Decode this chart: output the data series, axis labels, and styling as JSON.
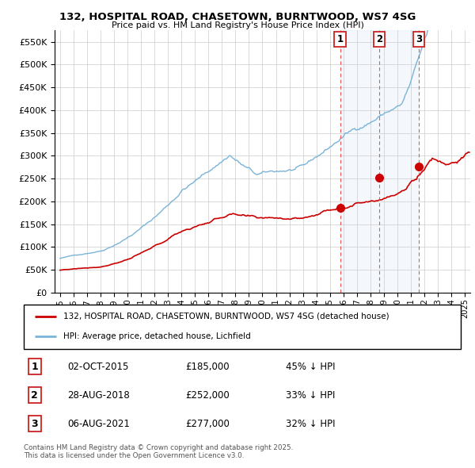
{
  "title_line1": "132, HOSPITAL ROAD, CHASETOWN, BURNTWOOD, WS7 4SG",
  "title_line2": "Price paid vs. HM Land Registry's House Price Index (HPI)",
  "ylim": [
    0,
    575000
  ],
  "yticks": [
    0,
    50000,
    100000,
    150000,
    200000,
    250000,
    300000,
    350000,
    400000,
    450000,
    500000,
    550000
  ],
  "ytick_labels": [
    "£0",
    "£50K",
    "£100K",
    "£150K",
    "£200K",
    "£250K",
    "£300K",
    "£350K",
    "£400K",
    "£450K",
    "£500K",
    "£550K"
  ],
  "xlim_start": 1994.6,
  "xlim_end": 2025.4,
  "xticks": [
    1995,
    1996,
    1997,
    1998,
    1999,
    2000,
    2001,
    2002,
    2003,
    2004,
    2005,
    2006,
    2007,
    2008,
    2009,
    2010,
    2011,
    2012,
    2013,
    2014,
    2015,
    2016,
    2017,
    2018,
    2019,
    2020,
    2021,
    2022,
    2023,
    2024,
    2025
  ],
  "sale_dates_num": [
    2015.75,
    2018.66,
    2021.59
  ],
  "sale_prices": [
    185000,
    252000,
    277000
  ],
  "sale_labels": [
    "1",
    "2",
    "3"
  ],
  "sale_dates_str": [
    "02-OCT-2015",
    "28-AUG-2018",
    "06-AUG-2021"
  ],
  "sale_prices_str": [
    "£185,000",
    "£252,000",
    "£277,000"
  ],
  "sale_below_str": [
    "45% ↓ HPI",
    "33% ↓ HPI",
    "32% ↓ HPI"
  ],
  "hpi_color": "#7ab4d8",
  "hpi_fill_color": "#daeaf5",
  "price_color": "#cc0000",
  "vline_color": "#ee4444",
  "legend_line1": "132, HOSPITAL ROAD, CHASETOWN, BURNTWOOD, WS7 4SG (detached house)",
  "legend_line2": "HPI: Average price, detached house, Lichfield",
  "footer_text": "Contains HM Land Registry data © Crown copyright and database right 2025.\nThis data is licensed under the Open Government Licence v3.0.",
  "background_color": "#ffffff",
  "plot_bg_color": "#ffffff",
  "grid_color": "#cccccc"
}
